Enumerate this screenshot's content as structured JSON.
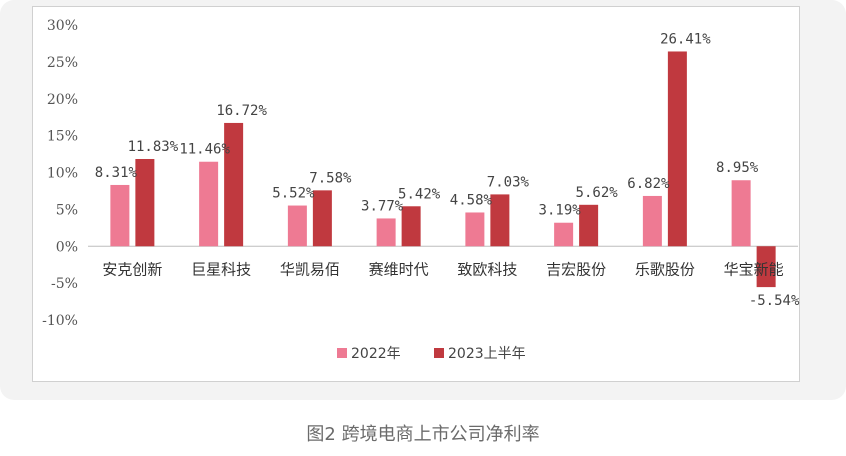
{
  "caption": "图2  跨境电商上市公司净利率",
  "chart_data": {
    "type": "bar",
    "categories": [
      "安克创新",
      "巨星科技",
      "华凯易佰",
      "赛维时代",
      "致欧科技",
      "吉宏股份",
      "乐歌股份",
      "华宝新能"
    ],
    "series": [
      {
        "name": "2022年",
        "color": "#ee7a93",
        "values": [
          8.31,
          11.46,
          5.52,
          3.77,
          4.58,
          3.19,
          6.82,
          8.95
        ],
        "labels": [
          "8.31%",
          "11.46%",
          "5.52%",
          "3.77%",
          "4.58%",
          "3.19%",
          "6.82%",
          "8.95%"
        ]
      },
      {
        "name": "2023上半年",
        "color": "#c0393f",
        "values": [
          11.83,
          16.72,
          7.58,
          5.42,
          7.03,
          5.62,
          26.41,
          -5.54
        ],
        "labels": [
          "11.83%",
          "16.72%",
          "7.58%",
          "5.42%",
          "7.03%",
          "5.62%",
          "26.41%",
          "-5.54%"
        ]
      }
    ],
    "ylim": [
      -10,
      30
    ],
    "yticks": [
      30,
      25,
      20,
      15,
      10,
      5,
      0,
      -5,
      -10
    ],
    "ytick_labels": [
      "30%",
      "25%",
      "20%",
      "15%",
      "10%",
      "5%",
      "0%",
      "-5%",
      "-10%"
    ],
    "grid": false,
    "legend_position": "bottom-center"
  }
}
